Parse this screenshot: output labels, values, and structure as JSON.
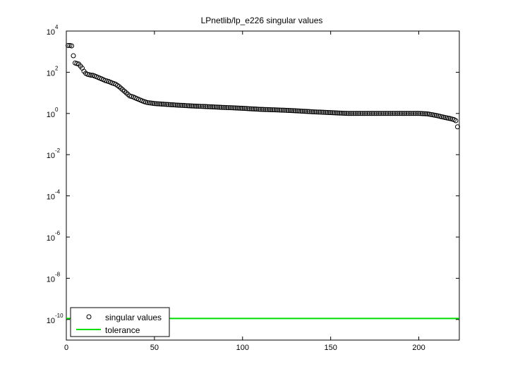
{
  "chart_data": {
    "type": "scatter",
    "title": "LPnetlib/lp_e226 singular values",
    "xlabel": "",
    "ylabel": "",
    "xlim": [
      0,
      223
    ],
    "ylim_exponent": [
      -11,
      4
    ],
    "yscale": "log",
    "x_ticks": [
      0,
      50,
      100,
      150,
      200
    ],
    "y_tick_exponents": [
      -10,
      -8,
      -6,
      -4,
      -2,
      0,
      2,
      4
    ],
    "legend": {
      "placement": "bottom-left",
      "entries": [
        "singular values",
        "tolerance"
      ]
    },
    "series": [
      {
        "name": "singular values",
        "marker": "circle",
        "color": "#000000",
        "log10_values_by_index": [
          [
            1,
            3.3
          ],
          [
            2,
            3.3
          ],
          [
            3,
            3.28
          ],
          [
            4,
            2.8
          ],
          [
            5,
            2.45
          ],
          [
            6,
            2.42
          ],
          [
            7,
            2.4
          ],
          [
            8,
            2.3
          ],
          [
            9,
            2.2
          ],
          [
            10,
            2.05
          ],
          [
            11,
            1.95
          ],
          [
            12,
            1.9
          ],
          [
            13,
            1.88
          ],
          [
            14,
            1.86
          ],
          [
            15,
            1.85
          ],
          [
            16,
            1.82
          ],
          [
            18,
            1.75
          ],
          [
            20,
            1.68
          ],
          [
            22,
            1.6
          ],
          [
            24,
            1.55
          ],
          [
            26,
            1.48
          ],
          [
            28,
            1.42
          ],
          [
            30,
            1.3
          ],
          [
            32,
            1.15
          ],
          [
            34,
            1.0
          ],
          [
            36,
            0.85
          ],
          [
            38,
            0.8
          ],
          [
            40,
            0.72
          ],
          [
            42,
            0.65
          ],
          [
            44,
            0.58
          ],
          [
            46,
            0.53
          ],
          [
            50,
            0.48
          ],
          [
            60,
            0.42
          ],
          [
            70,
            0.37
          ],
          [
            80,
            0.33
          ],
          [
            90,
            0.29
          ],
          [
            100,
            0.25
          ],
          [
            110,
            0.2
          ],
          [
            120,
            0.17
          ],
          [
            130,
            0.13
          ],
          [
            140,
            0.08
          ],
          [
            150,
            0.04
          ],
          [
            160,
            0.0
          ],
          [
            170,
            0.0
          ],
          [
            180,
            0.0
          ],
          [
            190,
            0.0
          ],
          [
            200,
            0.0
          ],
          [
            205,
            -0.02
          ],
          [
            210,
            -0.1
          ],
          [
            215,
            -0.2
          ],
          [
            218,
            -0.25
          ],
          [
            220,
            -0.3
          ],
          [
            221,
            -0.35
          ],
          [
            222,
            -0.65
          ]
        ]
      },
      {
        "name": "tolerance",
        "type": "line",
        "color": "#00dd00",
        "log10_value": -9.95
      }
    ]
  }
}
